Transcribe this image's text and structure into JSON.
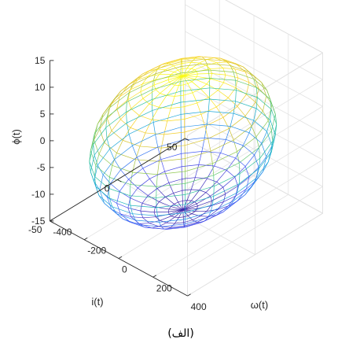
{
  "chart_data": {
    "type": "3d-surface-mesh",
    "shape": "ellipsoid",
    "colormap": "parula",
    "colormap_colors": [
      "#3e26a8",
      "#4a52f5",
      "#2d8bef",
      "#19afd3",
      "#2fc29c",
      "#7fcb5a",
      "#c8bf32",
      "#f9d02b",
      "#f9fb15"
    ],
    "grid": true,
    "mesh_divisions": {
      "longitude": 20,
      "latitude": 20
    },
    "center": {
      "omega": 20,
      "i": -5,
      "phi": 0
    },
    "radii": {
      "omega": 330,
      "i": 55,
      "phi": 12.5
    },
    "axes": {
      "omega": {
        "label": "ω(t)",
        "range": [
          -400,
          400
        ],
        "ticks": [
          "-400",
          "-200",
          "0",
          "200",
          "400"
        ]
      },
      "i": {
        "label": "i(t)",
        "range": [
          -50,
          50
        ],
        "ticks": [
          "-50",
          "0",
          "50"
        ]
      },
      "phi": {
        "label": "ϕ(t)",
        "range": [
          -15,
          15
        ],
        "ticks": [
          "-15",
          "-10",
          "-5",
          "0",
          "5",
          "10",
          "15"
        ]
      }
    }
  },
  "caption": "(الف)"
}
